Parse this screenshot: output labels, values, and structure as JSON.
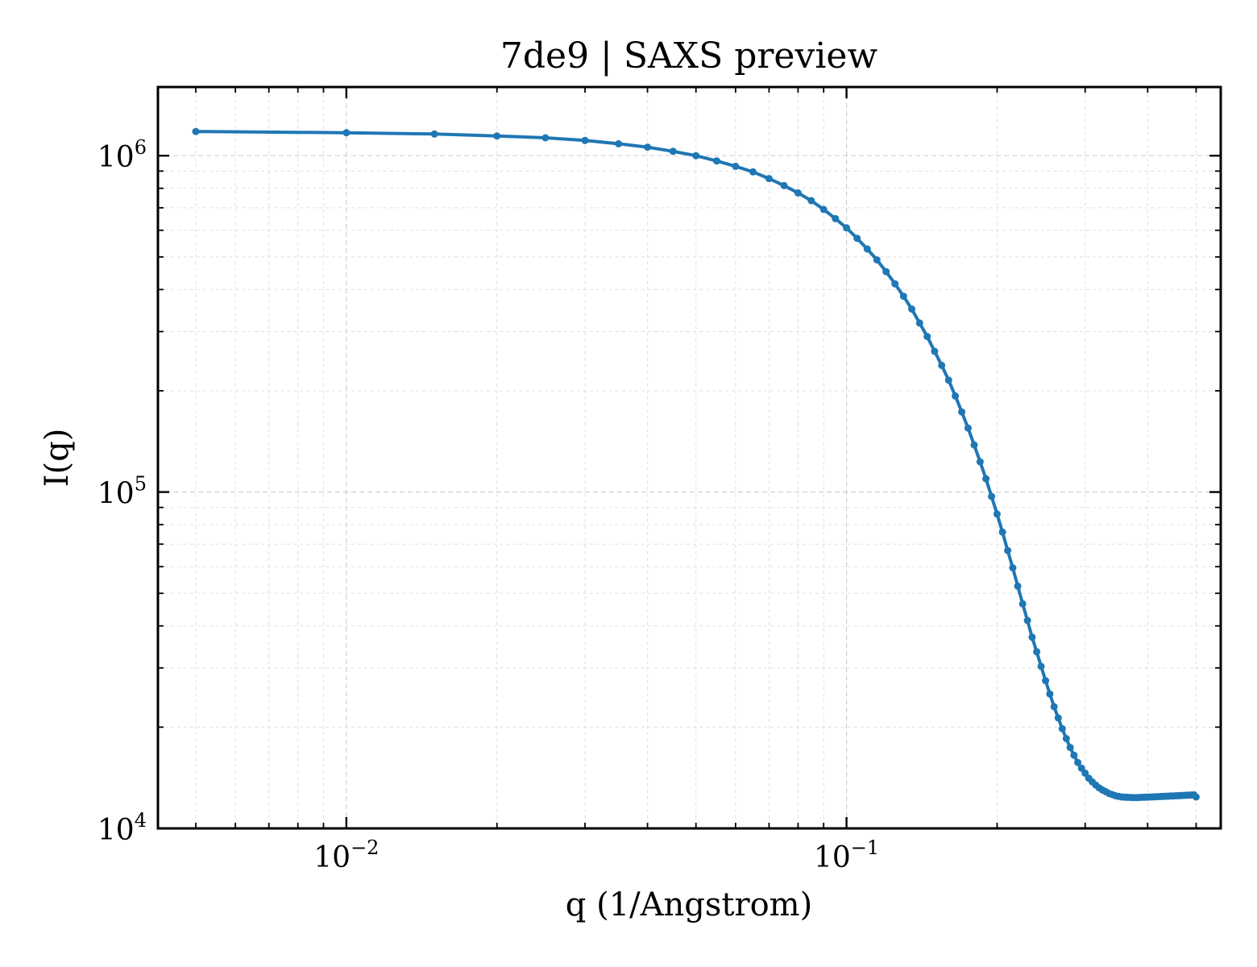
{
  "chart_data": {
    "type": "line",
    "title": "7de9 | SAXS preview",
    "xlabel": "q (1/Angstrom)",
    "ylabel": "I(q)",
    "xscale": "log",
    "yscale": "log",
    "xlim": [
      0.0042,
      0.56
    ],
    "ylim": [
      10000,
      1600000
    ],
    "grid": true,
    "legend": "none",
    "x_ticks": [
      {
        "value": 0.01,
        "base": "10",
        "exp": "−2"
      },
      {
        "value": 0.1,
        "base": "10",
        "exp": "−1"
      }
    ],
    "y_ticks": [
      {
        "value": 10000,
        "base": "10",
        "exp": "4"
      },
      {
        "value": 100000,
        "base": "10",
        "exp": "5"
      },
      {
        "value": 1000000,
        "base": "10",
        "exp": "6"
      }
    ],
    "series": [
      {
        "color": "#1f77b4",
        "x": [
          0.005,
          0.01,
          0.015,
          0.02,
          0.025,
          0.03,
          0.035,
          0.04,
          0.045,
          0.05,
          0.055,
          0.06,
          0.065,
          0.07,
          0.075,
          0.08,
          0.085,
          0.09,
          0.095,
          0.1,
          0.105,
          0.11,
          0.115,
          0.12,
          0.125,
          0.13,
          0.135,
          0.14,
          0.145,
          0.15,
          0.155,
          0.16,
          0.165,
          0.17,
          0.175,
          0.18,
          0.185,
          0.19,
          0.195,
          0.2,
          0.205,
          0.21,
          0.215,
          0.22,
          0.225,
          0.23,
          0.235,
          0.24,
          0.245,
          0.25,
          0.255,
          0.26,
          0.265,
          0.27,
          0.275,
          0.28,
          0.285,
          0.29,
          0.295,
          0.3,
          0.305,
          0.31,
          0.315,
          0.32,
          0.325,
          0.33,
          0.335,
          0.34,
          0.345,
          0.35,
          0.355,
          0.36,
          0.365,
          0.37,
          0.375,
          0.38,
          0.385,
          0.39,
          0.395,
          0.4,
          0.405,
          0.41,
          0.415,
          0.42,
          0.425,
          0.43,
          0.435,
          0.44,
          0.445,
          0.45,
          0.455,
          0.46,
          0.465,
          0.47,
          0.475,
          0.48,
          0.485,
          0.49,
          0.495,
          0.5
        ],
        "y": [
          1180000,
          1170000,
          1160000,
          1145000,
          1130000,
          1110000,
          1085000,
          1060000,
          1030000,
          1000000,
          965000,
          930000,
          895000,
          855000,
          815000,
          775000,
          735000,
          692000,
          650000,
          610000,
          568000,
          528000,
          490000,
          452000,
          416000,
          382000,
          350000,
          318000,
          290000,
          262000,
          238000,
          215000,
          193000,
          173000,
          155000,
          138000,
          123000,
          109500,
          97000,
          86000,
          76000,
          67000,
          59500,
          52500,
          46500,
          41500,
          37000,
          33500,
          30300,
          27500,
          25100,
          23000,
          21300,
          19800,
          18500,
          17400,
          16500,
          15700,
          15100,
          14600,
          14100,
          13750,
          13450,
          13200,
          13000,
          12850,
          12700,
          12600,
          12500,
          12450,
          12400,
          12380,
          12370,
          12360,
          12350,
          12350,
          12360,
          12370,
          12380,
          12390,
          12400,
          12410,
          12420,
          12430,
          12440,
          12450,
          12460,
          12470,
          12480,
          12490,
          12500,
          12510,
          12520,
          12530,
          12540,
          12550,
          12560,
          12570,
          12580,
          12400
        ]
      }
    ]
  }
}
